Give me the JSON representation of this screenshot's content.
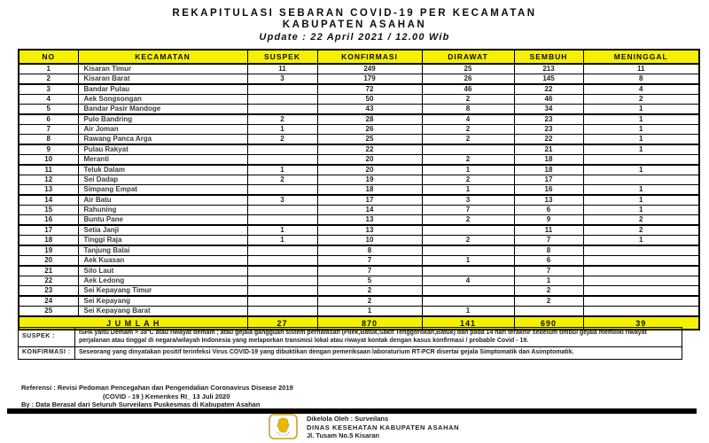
{
  "title": {
    "line1": "REKAPITULASI SEBARAN COVID-19 PER KECAMATAN",
    "line2": "KABUPATEN ASAHAN",
    "line3": "Update : 22 April 2021 / 12.00 Wib"
  },
  "table": {
    "headers": [
      "NO",
      "KECAMATAN",
      "SUSPEK",
      "KONFIRMASI",
      "DIRAWAT",
      "SEMBUH",
      "MENINGGAL"
    ],
    "rows": [
      {
        "no": "1",
        "kecamatan": "Kisaran Timur",
        "suspek": "11",
        "konfirmasi": "249",
        "dirawat": "25",
        "sembuh": "213",
        "meninggal": "11"
      },
      {
        "no": "2",
        "kecamatan": "Kisaran Barat",
        "suspek": "3",
        "konfirmasi": "179",
        "dirawat": "26",
        "sembuh": "145",
        "meninggal": "8"
      },
      {
        "no": "3",
        "kecamatan": "Bandar Pulau",
        "suspek": "",
        "konfirmasi": "72",
        "dirawat": "46",
        "sembuh": "22",
        "meninggal": "4"
      },
      {
        "no": "4",
        "kecamatan": "Aek Songsongan",
        "suspek": "",
        "konfirmasi": "50",
        "dirawat": "2",
        "sembuh": "46",
        "meninggal": "2"
      },
      {
        "no": "5",
        "kecamatan": "Bandar Pasir Mandoge",
        "suspek": "",
        "konfirmasi": "43",
        "dirawat": "8",
        "sembuh": "34",
        "meninggal": "1"
      },
      {
        "no": "6",
        "kecamatan": "Pulo Bandring",
        "suspek": "2",
        "konfirmasi": "28",
        "dirawat": "4",
        "sembuh": "23",
        "meninggal": "1"
      },
      {
        "no": "7",
        "kecamatan": "Air Joman",
        "suspek": "1",
        "konfirmasi": "26",
        "dirawat": "2",
        "sembuh": "23",
        "meninggal": "1"
      },
      {
        "no": "8",
        "kecamatan": "Rawang Panca Arga",
        "suspek": "2",
        "konfirmasi": "25",
        "dirawat": "2",
        "sembuh": "22",
        "meninggal": "1"
      },
      {
        "no": "9",
        "kecamatan": "Pulau Rakyat",
        "suspek": "",
        "konfirmasi": "22",
        "dirawat": "",
        "sembuh": "21",
        "meninggal": "1"
      },
      {
        "no": "10",
        "kecamatan": "Meranti",
        "suspek": "",
        "konfirmasi": "20",
        "dirawat": "2",
        "sembuh": "18",
        "meninggal": ""
      },
      {
        "no": "11",
        "kecamatan": "Teluk Dalam",
        "suspek": "1",
        "konfirmasi": "20",
        "dirawat": "1",
        "sembuh": "18",
        "meninggal": "1"
      },
      {
        "no": "12",
        "kecamatan": "Sei Dadap",
        "suspek": "2",
        "konfirmasi": "19",
        "dirawat": "2",
        "sembuh": "17",
        "meninggal": ""
      },
      {
        "no": "13",
        "kecamatan": "Simpang Empat",
        "suspek": "",
        "konfirmasi": "18",
        "dirawat": "1",
        "sembuh": "16",
        "meninggal": "1"
      },
      {
        "no": "14",
        "kecamatan": "Air Batu",
        "suspek": "3",
        "konfirmasi": "17",
        "dirawat": "3",
        "sembuh": "13",
        "meninggal": "1"
      },
      {
        "no": "15",
        "kecamatan": "Rahuning",
        "suspek": "",
        "konfirmasi": "14",
        "dirawat": "7",
        "sembuh": "6",
        "meninggal": "1"
      },
      {
        "no": "16",
        "kecamatan": "Buntu Pane",
        "suspek": "",
        "konfirmasi": "13",
        "dirawat": "2",
        "sembuh": "9",
        "meninggal": "2"
      },
      {
        "no": "17",
        "kecamatan": "Setia Janji",
        "suspek": "1",
        "konfirmasi": "13",
        "dirawat": "",
        "sembuh": "11",
        "meninggal": "2"
      },
      {
        "no": "18",
        "kecamatan": "Tinggi Raja",
        "suspek": "1",
        "konfirmasi": "10",
        "dirawat": "2",
        "sembuh": "7",
        "meninggal": "1"
      },
      {
        "no": "19",
        "kecamatan": "Tanjung Balai",
        "suspek": "",
        "konfirmasi": "8",
        "dirawat": "",
        "sembuh": "8",
        "meninggal": ""
      },
      {
        "no": "20",
        "kecamatan": "Aek Kuasan",
        "suspek": "",
        "konfirmasi": "7",
        "dirawat": "1",
        "sembuh": "6",
        "meninggal": ""
      },
      {
        "no": "21",
        "kecamatan": "Silo Laut",
        "suspek": "",
        "konfirmasi": "7",
        "dirawat": "",
        "sembuh": "7",
        "meninggal": ""
      },
      {
        "no": "22",
        "kecamatan": "Aek Ledong",
        "suspek": "",
        "konfirmasi": "5",
        "dirawat": "4",
        "sembuh": "1",
        "meninggal": ""
      },
      {
        "no": "23",
        "kecamatan": "Sei Kepayang Timur",
        "suspek": "",
        "konfirmasi": "2",
        "dirawat": "",
        "sembuh": "2",
        "meninggal": ""
      },
      {
        "no": "24",
        "kecamatan": "Sei Kepayang",
        "suspek": "",
        "konfirmasi": "2",
        "dirawat": "",
        "sembuh": "2",
        "meninggal": ""
      },
      {
        "no": "25",
        "kecamatan": "Sei Kepayang Barat",
        "suspek": "",
        "konfirmasi": "1",
        "dirawat": "1",
        "sembuh": "",
        "meninggal": ""
      }
    ],
    "total": {
      "label": "J U M L A H",
      "suspek": "27",
      "konfirmasi": "870",
      "dirawat": "141",
      "sembuh": "690",
      "meninggal": "39"
    }
  },
  "notes": [
    {
      "label": "SUSPEK :",
      "text": "ISPA yaitu Demam > 38°C atau riwayat demam ; atau gejala gangguan sistem pernafasan (Pilek,Batuk,Sakit Tenggorokan,Batuk) dan pada 14 hari terakhir sebelum timbul gejala memiliki riwayat perjalanan atau tinggal di negara/wilayah Indonesia yang melaporkan transmisi lokal atau riwayat kontak dengan kasus konfirmasi / probable Covid - 19."
    },
    {
      "label": "KONFIRMASI :",
      "text": "Seseorang yang dinyatakan positif terinfeksi Virus COVID-19 yang dibuktikan dengan pemeriksaan laboraturium RT-PCR disertai gejala Simptomatik dan Asimptomatik."
    }
  ],
  "referensi": {
    "line1": "Referensi  :  Revisi Pedoman Pencegahan dan Pengendalian Coronavirus Disease 2019",
    "line2": "(COVID - 19 ) Kemenkes RI_ 13 Juli 2020"
  },
  "by_line": "By : Data Berasal dari Seluruh Surveilans Puskesmas di Kabupaten Asahan",
  "credits": {
    "managed_by": "Dikelola Oleh : Surveilans",
    "org": "DINAS KESEHATAN KABUPATEN ASAHAN",
    "address": "Jl. Tusam No.5 Kisaran"
  },
  "icons": {
    "logo": "bakti-husada-logo"
  },
  "colors": {
    "header_yellow": "#f5f000",
    "border_black": "#000000",
    "logo_gold": "#c9a227",
    "logo_fill": "#e8b800",
    "logo_arc_blue": "#8ab4d8"
  }
}
